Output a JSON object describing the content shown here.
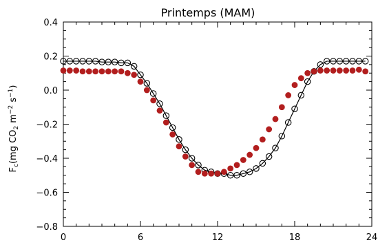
{
  "chart_data": {
    "type": "scatter",
    "title": "Printemps (MAM)",
    "ylabel": "F",
    "ylabel_subscript": "c",
    "ylabel_units": "(mg CO",
    "ylabel_units_sub": "2",
    "ylabel_units_rest": " m",
    "ylabel_exp1": "−2",
    "ylabel_s": " s",
    "ylabel_exp2": "−1",
    "ylabel_close": ")",
    "xlim": [
      0,
      24
    ],
    "ylim": [
      -0.8,
      0.4
    ],
    "xticks": [
      0,
      6,
      12,
      18,
      24
    ],
    "xtick_labels": [
      "0",
      "6",
      "12",
      "18",
      "24"
    ],
    "yticks": [
      -0.8,
      -0.6,
      -0.4,
      -0.2,
      0.0,
      0.2,
      0.4
    ],
    "ytick_labels": [
      "−0.8",
      "−0.6",
      "−0.4",
      "−0.2",
      "0.0",
      "0.2",
      "0.4"
    ],
    "grid": false,
    "colors": {
      "red": "#b21e1e",
      "black": "#000000"
    },
    "series": [
      {
        "style": "open-circles-with-line",
        "color": "#000000",
        "x": [
          0.0,
          0.5,
          1.0,
          1.5,
          2.0,
          2.5,
          3.0,
          3.5,
          4.0,
          4.5,
          5.0,
          5.5,
          6.0,
          6.5,
          7.0,
          7.5,
          8.0,
          8.5,
          9.0,
          9.5,
          10.0,
          10.5,
          11.0,
          11.5,
          12.0,
          12.5,
          13.0,
          13.5,
          14.0,
          14.5,
          15.0,
          15.5,
          16.0,
          16.5,
          17.0,
          17.5,
          18.0,
          18.5,
          19.0,
          19.5,
          20.0,
          20.5,
          21.0,
          21.5,
          22.0,
          22.5,
          23.0,
          23.5
        ],
        "values": [
          0.17,
          0.17,
          0.17,
          0.17,
          0.17,
          0.17,
          0.165,
          0.165,
          0.165,
          0.16,
          0.16,
          0.14,
          0.09,
          0.04,
          -0.02,
          -0.08,
          -0.15,
          -0.22,
          -0.29,
          -0.35,
          -0.4,
          -0.44,
          -0.47,
          -0.48,
          -0.49,
          -0.49,
          -0.5,
          -0.5,
          -0.49,
          -0.48,
          -0.46,
          -0.43,
          -0.39,
          -0.34,
          -0.27,
          -0.19,
          -0.11,
          -0.03,
          0.05,
          0.11,
          0.15,
          0.17,
          0.17,
          0.17,
          0.17,
          0.17,
          0.17,
          0.17
        ]
      },
      {
        "style": "filled-circles",
        "color": "#b21e1e",
        "x": [
          0.0,
          0.5,
          1.0,
          1.5,
          2.0,
          2.5,
          3.0,
          3.5,
          4.0,
          4.5,
          5.0,
          5.5,
          6.0,
          6.5,
          7.0,
          7.5,
          8.0,
          8.5,
          9.0,
          9.5,
          10.0,
          10.5,
          11.0,
          11.5,
          12.0,
          12.5,
          13.0,
          13.5,
          14.0,
          14.5,
          15.0,
          15.5,
          16.0,
          16.5,
          17.0,
          17.5,
          18.0,
          18.5,
          19.0,
          19.5,
          20.0,
          20.5,
          21.0,
          21.5,
          22.0,
          22.5,
          23.0,
          23.5
        ],
        "values": [
          0.115,
          0.115,
          0.115,
          0.11,
          0.11,
          0.11,
          0.11,
          0.11,
          0.11,
          0.11,
          0.1,
          0.09,
          0.05,
          0.0,
          -0.06,
          -0.12,
          -0.19,
          -0.26,
          -0.33,
          -0.39,
          -0.44,
          -0.48,
          -0.49,
          -0.49,
          -0.49,
          -0.48,
          -0.46,
          -0.44,
          -0.41,
          -0.38,
          -0.34,
          -0.29,
          -0.23,
          -0.17,
          -0.1,
          -0.03,
          0.03,
          0.07,
          0.1,
          0.11,
          0.115,
          0.115,
          0.115,
          0.115,
          0.115,
          0.115,
          0.12,
          0.11
        ]
      }
    ]
  }
}
